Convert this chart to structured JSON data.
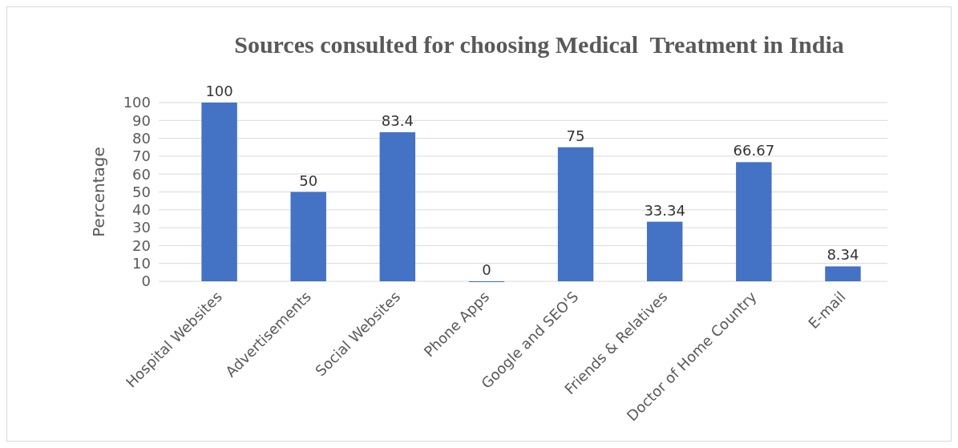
{
  "chart_data": {
    "type": "bar",
    "title": "Sources consulted for choosing Medical  Treatment in India",
    "ylabel": "Percentage",
    "categories": [
      "Hospital Websites",
      "Advertisements",
      "Social Websites",
      "Phone Apps",
      "Google and SEO'S",
      "Friends & Relatives",
      "Doctor of Home Country",
      "E-mail"
    ],
    "values": [
      100,
      50,
      83.4,
      0,
      75,
      33.34,
      66.67,
      8.34
    ],
    "color": "#4472c4",
    "ylim": [
      0,
      100
    ],
    "yticks": [
      0,
      10,
      20,
      30,
      40,
      50,
      60,
      70,
      80,
      90,
      100
    ],
    "grid": "y",
    "data_labels": true
  }
}
